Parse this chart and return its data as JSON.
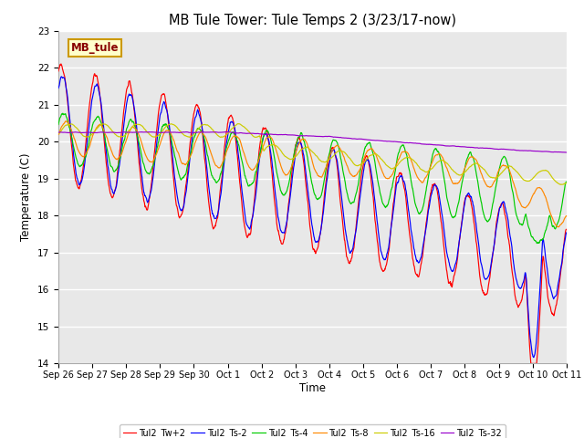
{
  "title": "MB Tule Tower: Tule Temps 2 (3/23/17-now)",
  "xlabel": "Time",
  "ylabel": "Temperature (C)",
  "ylim": [
    14.0,
    23.0
  ],
  "yticks": [
    14.0,
    15.0,
    16.0,
    17.0,
    18.0,
    19.0,
    20.0,
    21.0,
    22.0,
    23.0
  ],
  "background_color": "#ffffff",
  "plot_bg_color": "#e8e8e8",
  "grid_color": "#ffffff",
  "legend_label": "MB_tule",
  "legend_box_color": "#ffffcc",
  "legend_box_edge": "#cc9900",
  "series": [
    {
      "label": "Tul2_Tw+2",
      "color": "#ff0000"
    },
    {
      "label": "Tul2_Ts-2",
      "color": "#0000ff"
    },
    {
      "label": "Tul2_Ts-4",
      "color": "#00cc00"
    },
    {
      "label": "Tul2_Ts-8",
      "color": "#ff8800"
    },
    {
      "label": "Tul2_Ts-16",
      "color": "#cccc00"
    },
    {
      "label": "Tul2_Ts-32",
      "color": "#9900cc"
    }
  ],
  "x_tick_labels": [
    "Sep 26",
    "Sep 27",
    "Sep 28",
    "Sep 29",
    "Sep 30",
    "Oct 1",
    "Oct 2",
    "Oct 3",
    "Oct 4",
    "Oct 5",
    "Oct 6",
    "Oct 7",
    "Oct 8",
    "Oct 9",
    "Oct 10",
    "Oct 11"
  ],
  "x_tick_positions": [
    0,
    1,
    2,
    3,
    4,
    5,
    6,
    7,
    8,
    9,
    10,
    11,
    12,
    13,
    14,
    15
  ]
}
